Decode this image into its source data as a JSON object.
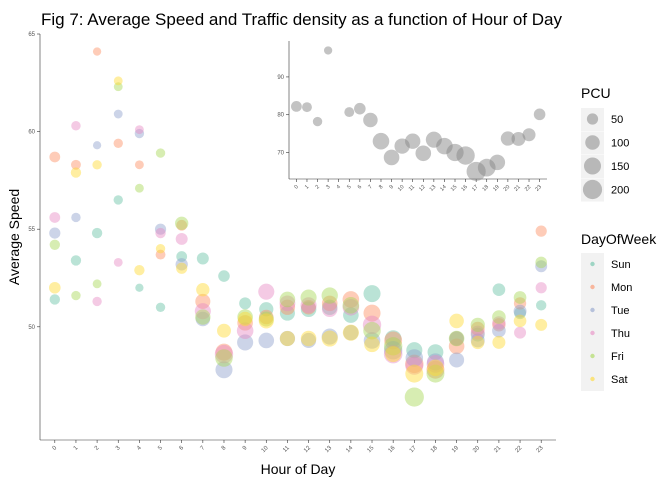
{
  "chart_data": [
    {
      "type": "scatter",
      "title": "Fig 7: Average Speed and Traffic density as a function of Hour of Day",
      "xlabel": "Hour of Day",
      "ylabel": "Average Speed",
      "x": [
        0,
        1,
        2,
        3,
        4,
        5,
        6,
        7,
        8,
        9,
        10,
        11,
        12,
        13,
        14,
        15,
        16,
        17,
        18,
        19,
        20,
        21,
        22,
        23
      ],
      "xlim": [
        -0.7,
        23.7
      ],
      "ylim": [
        44.2,
        65.0
      ],
      "yticks": [
        50,
        55,
        60,
        65
      ],
      "grid": false,
      "size_legend": {
        "title": "PCU",
        "values": [
          50,
          100,
          150,
          200
        ]
      },
      "series": [
        {
          "name": "Sun",
          "color": "#66c2a5",
          "values": [
            51.4,
            53.4,
            54.8,
            56.5,
            52.0,
            51.0,
            53.6,
            53.5,
            52.6,
            51.2,
            50.9,
            50.7,
            50.9,
            51.0,
            50.6,
            51.7,
            49.4,
            48.8,
            48.7,
            49.4,
            49.6,
            51.9,
            50.7,
            51.1
          ],
          "pcu": [
            40,
            40,
            40,
            30,
            20,
            30,
            45,
            60,
            55,
            60,
            95,
            110,
            120,
            115,
            120,
            150,
            140,
            130,
            125,
            100,
            90,
            70,
            60,
            40
          ]
        },
        {
          "name": "Mon",
          "color": "#fc8d62",
          "values": [
            58.7,
            58.3,
            64.1,
            59.4,
            58.3,
            53.7,
            55.2,
            51.3,
            48.7,
            50.2,
            50.5,
            51.0,
            51.0,
            51.2,
            51.4,
            50.7,
            49.3,
            48.1,
            47.8,
            49.0,
            49.9,
            50.1,
            51.2,
            54.9
          ],
          "pcu": [
            45,
            35,
            20,
            30,
            25,
            35,
            45,
            110,
            150,
            120,
            100,
            115,
            100,
            120,
            140,
            150,
            170,
            180,
            170,
            120,
            90,
            80,
            65,
            50
          ]
        },
        {
          "name": "Tue",
          "color": "#8da0cb",
          "values": [
            54.8,
            55.6,
            59.3,
            60.9,
            59.9,
            55.0,
            53.2,
            50.4,
            47.8,
            49.2,
            49.3,
            49.4,
            49.3,
            49.5,
            49.7,
            49.3,
            48.8,
            48.4,
            48.2,
            48.3,
            49.3,
            49.8,
            50.8,
            53.1
          ],
          "pcu": [
            50,
            30,
            20,
            25,
            30,
            50,
            65,
            100,
            150,
            130,
            120,
            115,
            110,
            130,
            115,
            140,
            180,
            160,
            150,
            110,
            90,
            85,
            75,
            60
          ]
        },
        {
          "name": "Thu",
          "color": "#e78ac3",
          "values": [
            55.6,
            60.3,
            51.3,
            53.3,
            60.1,
            54.8,
            54.5,
            50.8,
            48.6,
            49.8,
            51.8,
            51.2,
            51.1,
            50.9,
            51.0,
            50.1,
            48.6,
            48.0,
            48.1,
            49.4,
            49.7,
            50.2,
            49.7,
            52.0
          ],
          "pcu": [
            45,
            30,
            30,
            25,
            25,
            40,
            60,
            130,
            180,
            140,
            130,
            125,
            130,
            120,
            140,
            180,
            185,
            170,
            165,
            100,
            90,
            80,
            60,
            50
          ]
        },
        {
          "name": "Fri",
          "color": "#a6d854",
          "values": [
            54.2,
            51.6,
            52.2,
            62.3,
            57.1,
            58.9,
            55.3,
            50.5,
            48.4,
            50.5,
            50.4,
            51.4,
            51.5,
            51.6,
            51.1,
            49.8,
            49.0,
            46.4,
            47.6,
            49.4,
            50.1,
            50.5,
            51.5,
            53.3
          ],
          "pcu": [
            40,
            30,
            25,
            25,
            25,
            30,
            80,
            115,
            160,
            120,
            110,
            120,
            130,
            135,
            140,
            160,
            180,
            200,
            170,
            120,
            95,
            85,
            70,
            55
          ]
        },
        {
          "name": "Sat",
          "color": "#ffd92f",
          "values": [
            52.0,
            57.9,
            58.3,
            62.6,
            52.9,
            54.0,
            53.0,
            51.9,
            49.8,
            50.4,
            50.3,
            49.4,
            49.4,
            49.4,
            49.7,
            49.1,
            48.6,
            47.6,
            47.9,
            50.3,
            49.2,
            49.2,
            50.3,
            50.1
          ],
          "pcu": [
            55,
            40,
            30,
            25,
            40,
            30,
            50,
            80,
            90,
            100,
            110,
            110,
            120,
            130,
            130,
            120,
            130,
            170,
            140,
            100,
            80,
            75,
            70,
            60
          ]
        }
      ]
    },
    {
      "type": "scatter",
      "title": "",
      "xlabel": "",
      "ylabel": "",
      "x": [
        0,
        1,
        2,
        3,
        4,
        5,
        6,
        7,
        8,
        9,
        10,
        11,
        12,
        13,
        14,
        15,
        16,
        17,
        18,
        19,
        20,
        21,
        22,
        23
      ],
      "values": [
        82.2,
        82.0,
        78.2,
        97.0,
        null,
        80.7,
        81.6,
        78.6,
        73.0,
        68.7,
        71.7,
        73.0,
        69.8,
        73.4,
        71.7,
        70.0,
        69.2,
        65.0,
        66.0,
        67.4,
        73.7,
        73.6,
        74.7,
        80.1
      ],
      "pcu": [
        45,
        35,
        30,
        20,
        null,
        35,
        55,
        100,
        140,
        120,
        115,
        115,
        120,
        130,
        140,
        155,
        180,
        200,
        165,
        120,
        95,
        90,
        75,
        55
      ],
      "xlim": [
        -0.7,
        23.7
      ],
      "ylim": [
        63.0,
        99.5
      ],
      "yticks": [
        70,
        80,
        90
      ],
      "color": "#888888",
      "grid": false
    }
  ],
  "legend": {
    "size_title": "PCU",
    "size_labels": [
      "50",
      "100",
      "150",
      "200"
    ],
    "color_title": "DayOfWeek",
    "color_labels": [
      "Sun",
      "Mon",
      "Tue",
      "Thu",
      "Fri",
      "Sat"
    ]
  }
}
